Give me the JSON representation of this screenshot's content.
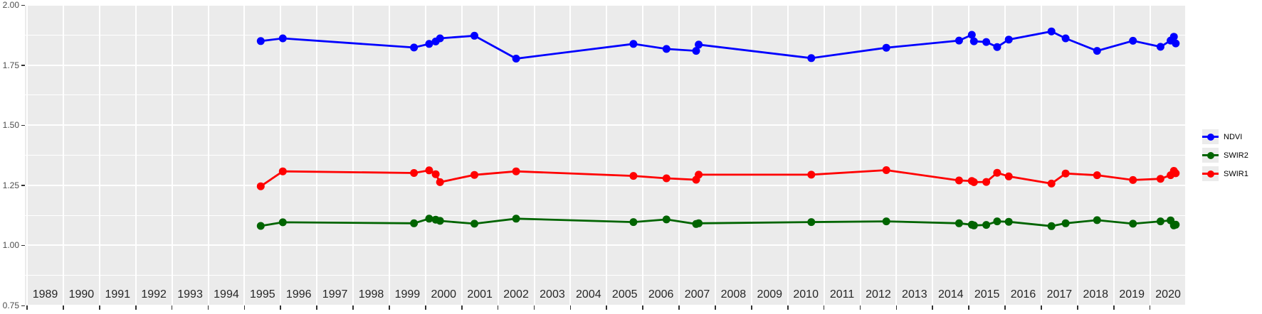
{
  "chart_data": {
    "type": "line",
    "title": "",
    "xlabel": "",
    "ylabel": "",
    "grid": true,
    "legend_position": "right-middle",
    "panel_bg": "#EBEBEB",
    "grid_color": "#FFFFFF",
    "axis_text_color": "#4D4D4D",
    "year_label_color": "#262626",
    "tick_color": "#333333",
    "ylim": [
      0.75,
      2.0
    ],
    "xlim": [
      1988.94,
      2020.97
    ],
    "y_tick_values": [
      2.0,
      1.75,
      1.5,
      1.25,
      1.0,
      0.75
    ],
    "y_tick_labels": [
      "2.00",
      "1.75",
      "1.50",
      "1.25",
      "1.00",
      "0.75"
    ],
    "y_minor_values": [
      1.875,
      1.625,
      1.375,
      1.125,
      0.875
    ],
    "x_tick_years": [
      1989,
      1990,
      1991,
      1992,
      1993,
      1994,
      1995,
      1996,
      1997,
      1998,
      1999,
      2000,
      2001,
      2002,
      2003,
      2004,
      2005,
      2006,
      2007,
      2008,
      2009,
      2010,
      2011,
      2012,
      2013,
      2014,
      2015,
      2016,
      2017,
      2018,
      2019,
      2020
    ],
    "x": [
      1995.45,
      1996.06,
      1999.68,
      2000.1,
      2000.28,
      2000.4,
      2001.35,
      2002.5,
      2005.74,
      2006.65,
      2007.47,
      2007.54,
      2010.65,
      2012.72,
      2014.73,
      2015.08,
      2015.14,
      2015.48,
      2015.78,
      2016.1,
      2017.28,
      2017.67,
      2018.54,
      2019.53,
      2020.29,
      2020.57,
      2020.66,
      2020.71
    ],
    "series": [
      {
        "name": "NDVI",
        "color": "#0000FF",
        "values": [
          1.85,
          1.861,
          1.823,
          1.838,
          1.848,
          1.861,
          1.872,
          1.777,
          1.838,
          1.817,
          1.809,
          1.835,
          1.779,
          1.822,
          1.852,
          1.876,
          1.849,
          1.846,
          1.825,
          1.856,
          1.89,
          1.861,
          1.809,
          1.851,
          1.826,
          1.852,
          1.868,
          1.84
        ]
      },
      {
        "name": "SWIR2",
        "color": "#006400",
        "values": [
          1.081,
          1.096,
          1.092,
          1.111,
          1.107,
          1.102,
          1.09,
          1.111,
          1.097,
          1.108,
          1.089,
          1.092,
          1.097,
          1.1,
          1.092,
          1.086,
          1.083,
          1.085,
          1.1,
          1.098,
          1.08,
          1.092,
          1.105,
          1.09,
          1.1,
          1.104,
          1.083,
          1.086
        ]
      },
      {
        "name": "SWIR1",
        "color": "#FF0000",
        "values": [
          1.246,
          1.308,
          1.301,
          1.312,
          1.296,
          1.263,
          1.293,
          1.308,
          1.289,
          1.279,
          1.273,
          1.294,
          1.294,
          1.313,
          1.27,
          1.268,
          1.263,
          1.264,
          1.302,
          1.287,
          1.257,
          1.299,
          1.292,
          1.272,
          1.277,
          1.292,
          1.31,
          1.3
        ]
      }
    ]
  }
}
